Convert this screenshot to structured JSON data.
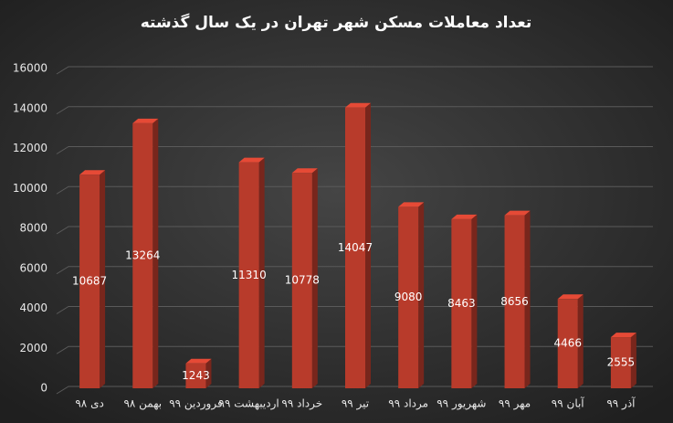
{
  "chart_data": {
    "type": "bar3d",
    "title": "تعداد معاملات مسکن شهر تهران در یک سال گذشته",
    "categories": [
      "دی ۹۸",
      "بهمن ۹۸",
      "فروردین ۹۹",
      "اردیبهشت ۹۹",
      "خرداد ۹۹",
      "تیر ۹۹",
      "مرداد ۹۹",
      "شهریور ۹۹",
      "مهر ۹۹",
      "آبان ۹۹",
      "آذر ۹۹"
    ],
    "values": [
      10687,
      13264,
      1243,
      11310,
      10778,
      14047,
      9080,
      8463,
      8656,
      4466,
      2555
    ],
    "color": "#b83b2b",
    "ylim": [
      0,
      16000
    ],
    "yticks": [
      0,
      2000,
      4000,
      6000,
      8000,
      10000,
      12000,
      14000,
      16000
    ],
    "grid": true
  }
}
